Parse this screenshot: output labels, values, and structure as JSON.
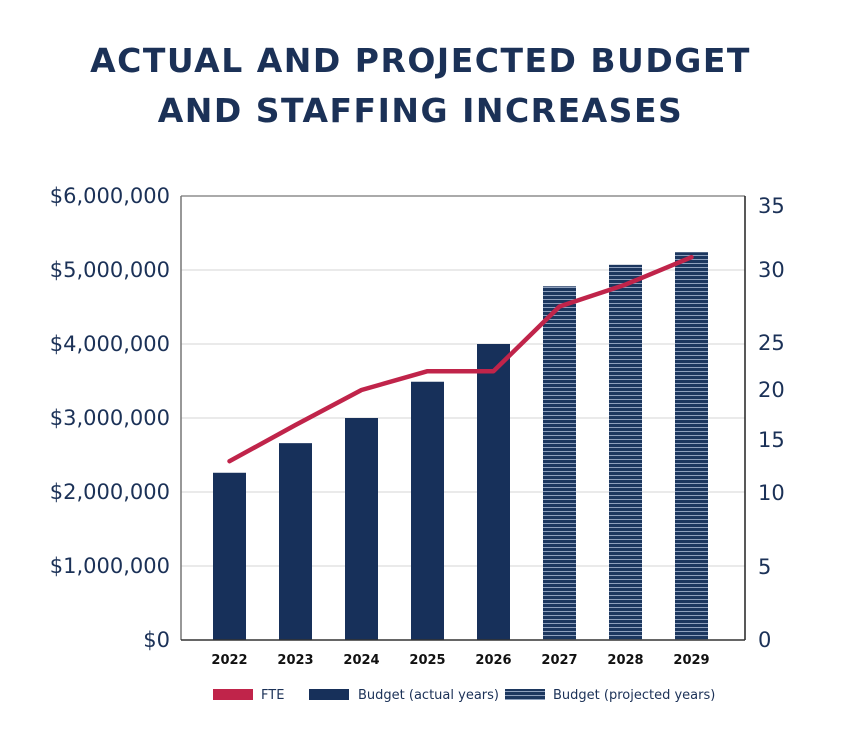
{
  "title_line1": "ACTUAL AND PROJECTED BUDGET",
  "title_line2": "AND STAFFING INCREASES",
  "colors": {
    "title": "#1b3157",
    "budget_actual": "#17305a",
    "budget_projected": "#1c375f",
    "projected_stripe": "#8ea0bd",
    "fte": "#c0244a",
    "grid": "#dddddd",
    "axis": "#555555"
  },
  "chart_data": {
    "type": "bar",
    "title": "ACTUAL AND PROJECTED BUDGET AND STAFFING INCREASES",
    "xlabel": "",
    "ylabel": "",
    "ylabel_right": "",
    "categories": [
      "2022",
      "2023",
      "2024",
      "2025",
      "2026",
      "2027",
      "2028",
      "2029"
    ],
    "series": [
      {
        "name": "Budget (actual years)",
        "type": "bar",
        "axis": "left",
        "values": [
          2260000,
          2660000,
          3000000,
          3490000,
          4000000,
          null,
          null,
          null
        ]
      },
      {
        "name": "Budget (projected years)",
        "type": "bar",
        "axis": "left",
        "pattern": "horizontal-stripes",
        "values": [
          null,
          null,
          null,
          null,
          null,
          4780000,
          5070000,
          5240000
        ]
      },
      {
        "name": "FTE",
        "type": "line",
        "axis": "right",
        "values": [
          13,
          16.5,
          20,
          22,
          22,
          27.5,
          29,
          31
        ]
      }
    ],
    "ylim": [
      0,
      6000000
    ],
    "yticks": [
      0,
      1000000,
      2000000,
      3000000,
      4000000,
      5000000,
      6000000
    ],
    "ytick_labels": [
      "$0",
      "$1,000,000",
      "$2,000,000",
      "$3,000,000",
      "$4,000,000",
      "$5,000,000",
      "$6,000,000"
    ],
    "y2ticks": [
      0,
      5,
      10,
      15,
      20,
      25,
      30,
      35
    ],
    "y2tick_labels": [
      "0",
      "5",
      "10",
      "15",
      "20",
      "25",
      "30",
      "35"
    ],
    "grid": true,
    "legend": {
      "placement": "bottom",
      "entries": [
        "FTE",
        "Budget (actual years)",
        "Budget (projected years)"
      ]
    }
  }
}
